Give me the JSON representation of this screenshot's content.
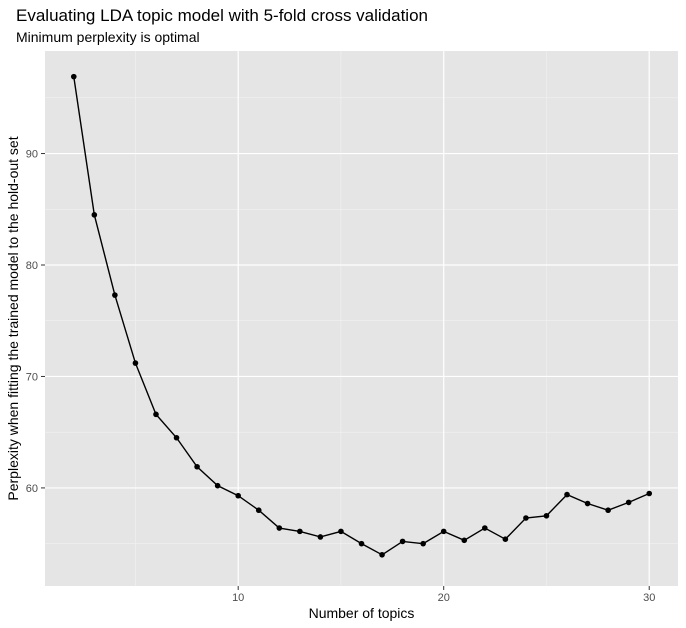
{
  "chart_data": {
    "type": "line",
    "title": "Evaluating LDA topic model with 5-fold cross validation",
    "subtitle": "Minimum perplexity is optimal",
    "xlabel": "Number of topics",
    "ylabel": "Perplexity when fitting the trained model to the hold-out set",
    "xlim": [
      0.6,
      31.4
    ],
    "ylim": [
      51.2,
      99.2
    ],
    "x_ticks": [
      10,
      20,
      30
    ],
    "y_ticks": [
      60,
      70,
      80,
      90
    ],
    "x_tick_labels": [
      "10",
      "20",
      "30"
    ],
    "y_tick_labels": [
      "60",
      "70",
      "80",
      "90"
    ],
    "grid": true,
    "legend": "none",
    "colors": {
      "panel_background": "#e5e5e5",
      "grid_major": "#ffffff",
      "grid_minor": "#f2f2f2",
      "line": "#000000",
      "point": "#000000"
    },
    "series": [
      {
        "x": [
          2,
          3,
          4,
          5,
          6,
          7,
          8,
          9,
          10,
          11,
          12,
          13,
          14,
          15,
          16,
          17,
          18,
          19,
          20,
          21,
          22,
          23,
          24,
          25,
          26,
          27,
          28,
          29,
          30
        ],
        "values": [
          96.9,
          84.5,
          77.3,
          71.2,
          66.6,
          64.5,
          61.9,
          60.2,
          59.3,
          58.0,
          56.4,
          56.1,
          55.6,
          56.1,
          55.0,
          54.0,
          55.2,
          55.0,
          56.1,
          55.3,
          56.4,
          55.4,
          57.3,
          57.5,
          59.4,
          58.6,
          58.0,
          58.7,
          59.5
        ]
      }
    ]
  }
}
